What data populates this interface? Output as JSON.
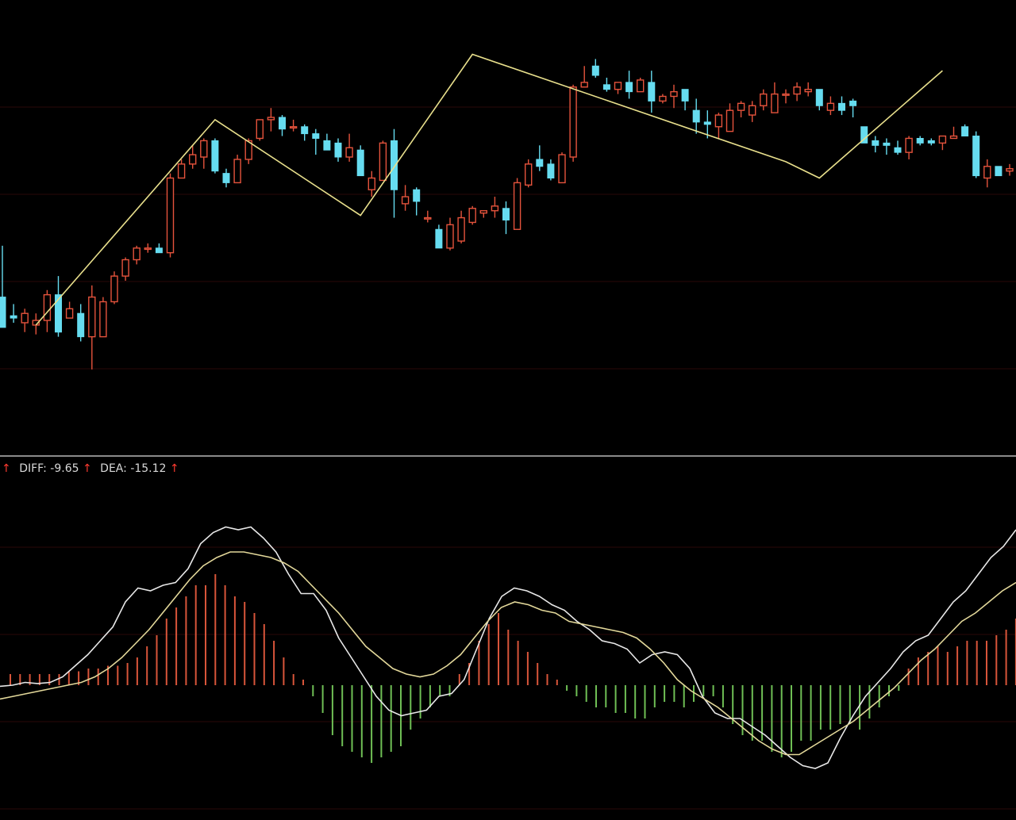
{
  "legend": {
    "diff_label": "DIFF:",
    "diff_value": "-9.65",
    "dea_label": "DEA:",
    "dea_value": "-15.12",
    "arrow": "↑"
  },
  "colors": {
    "background": "#000000",
    "up": "#e5533c",
    "down": "#66dcf0",
    "zigzag": "#e8df8c",
    "diff_line": "#e8e8e8",
    "dea_line": "#e3d89a",
    "hist_pos": "#d8553a",
    "hist_neg": "#6fbf55",
    "divider": "#8a8a8a",
    "grid": "#2a0808",
    "legend_text": "#d9d9d9",
    "arrow": "#ff3b30"
  },
  "chart_data": [
    {
      "type": "candlestick",
      "title": "",
      "series": [
        {
          "name": "",
          "ohlc": [
            [
              63,
              50,
              85,
              50
            ],
            [
              55,
              54,
              60,
              52
            ],
            [
              52,
              56,
              58,
              48
            ],
            [
              51,
              53,
              56,
              47
            ],
            [
              53,
              64,
              66,
              48
            ],
            [
              64,
              48,
              72,
              46
            ],
            [
              54,
              58,
              61,
              56
            ],
            [
              56,
              46,
              60,
              44
            ],
            [
              46,
              63,
              68,
              32
            ],
            [
              46,
              61,
              63,
              46
            ],
            [
              61,
              72,
              74,
              60
            ],
            [
              72,
              79,
              80,
              70
            ],
            [
              79,
              84,
              85,
              77
            ],
            [
              84,
              84,
              86,
              82
            ],
            [
              84,
              82,
              86,
              82
            ],
            [
              82,
              114,
              116,
              80
            ],
            [
              114,
              120,
              122,
              114
            ],
            [
              120,
              124,
              128,
              118
            ],
            [
              123,
              130,
              131,
              118
            ],
            [
              130,
              117,
              131,
              116
            ],
            [
              116,
              112,
              118,
              110
            ],
            [
              112,
              122,
              124,
              112
            ],
            [
              122,
              130,
              131,
              120
            ],
            [
              131,
              139,
              139,
              130
            ],
            [
              139,
              140,
              144,
              134
            ],
            [
              140,
              135,
              141,
              132
            ],
            [
              136,
              136,
              139,
              134
            ],
            [
              136,
              133,
              137,
              130
            ],
            [
              133,
              131,
              135,
              124
            ],
            [
              130,
              126,
              133,
              126
            ],
            [
              129,
              123,
              131,
              121
            ],
            [
              123,
              127,
              133,
              121
            ],
            [
              126,
              115,
              128,
              115
            ],
            [
              109,
              114,
              117,
              106
            ],
            [
              113,
              129,
              130,
              113
            ],
            [
              130,
              109,
              135,
              97
            ],
            [
              103,
              106,
              111,
              100
            ],
            [
              109,
              104,
              110,
              98
            ],
            [
              97,
              97,
              100,
              95
            ],
            [
              92,
              84,
              94,
              84
            ],
            [
              84,
              94,
              97,
              83
            ],
            [
              87,
              97,
              100,
              86
            ],
            [
              95,
              101,
              102,
              94
            ],
            [
              99,
              100,
              100,
              97
            ],
            [
              100,
              102,
              106,
              97
            ],
            [
              101,
              96,
              104,
              90
            ],
            [
              92,
              112,
              114,
              92
            ],
            [
              111,
              120,
              122,
              110
            ],
            [
              122,
              119,
              128,
              117
            ],
            [
              120,
              114,
              122,
              113
            ],
            [
              112,
              124,
              125,
              112
            ],
            [
              123,
              153,
              154,
              121
            ],
            [
              153,
              155,
              162,
              153
            ],
            [
              162,
              158,
              165,
              157
            ],
            [
              154,
              152,
              157,
              151
            ],
            [
              152,
              155,
              155,
              150
            ],
            [
              155,
              151,
              160,
              148
            ],
            [
              151,
              156,
              157,
              151
            ],
            [
              155,
              147,
              160,
              142
            ],
            [
              147,
              149,
              150,
              146
            ],
            [
              149,
              151,
              154,
              144
            ],
            [
              152,
              147,
              151,
              143
            ],
            [
              143,
              138,
              148,
              133
            ],
            [
              138,
              137,
              143,
              131
            ],
            [
              136,
              141,
              142,
              131
            ],
            [
              134,
              143,
              146,
              137
            ],
            [
              143,
              146,
              147,
              140
            ],
            [
              141,
              145,
              147,
              138
            ],
            [
              145,
              150,
              152,
              143
            ],
            [
              142,
              150,
              155,
              142
            ],
            [
              150,
              150,
              152,
              146
            ],
            [
              150,
              153,
              155,
              147
            ],
            [
              151,
              152,
              155,
              149
            ],
            [
              152,
              145,
              152,
              143
            ],
            [
              143,
              146,
              149,
              141
            ],
            [
              146,
              143,
              149,
              141
            ],
            [
              147,
              145,
              148,
              140
            ],
            [
              136,
              129,
              136,
              130
            ],
            [
              130,
              128,
              132,
              125
            ],
            [
              129,
              128,
              131,
              124
            ],
            [
              127,
              125,
              130,
              124
            ],
            [
              125,
              131,
              132,
              122
            ],
            [
              131,
              129,
              132,
              128
            ],
            [
              130,
              129,
              131,
              128
            ],
            [
              129,
              132,
              132,
              126
            ],
            [
              131,
              132,
              136,
              132
            ],
            [
              136,
              132,
              137,
              132
            ],
            [
              132,
              115,
              134,
              114
            ],
            [
              114,
              119,
              122,
              110
            ],
            [
              119,
              115,
              117,
              115
            ],
            [
              117,
              118,
              120,
              115
            ],
            [
              117,
              121,
              122,
              116
            ],
            [
              123,
              134,
              135,
              122
            ],
            [
              134,
              141,
              142,
              133
            ],
            [
              141,
              140,
              143,
              140
            ],
            [
              140,
              140,
              143,
              138
            ],
            [
              140,
              143,
              143,
              141
            ],
            [
              143,
              140,
              145,
              139
            ],
            [
              142,
              131,
              142,
              128
            ],
            [
              132,
              149,
              151,
              131
            ],
            [
              149,
              153,
              156,
              148
            ],
            [
              153,
              150,
              154,
              148
            ],
            [
              151,
              154,
              157,
              148
            ],
            [
              152,
              160,
              164,
              150
            ],
            [
              161,
              171,
              174,
              159
            ],
            [
              171,
              172,
              175,
              169
            ]
          ]
        },
        {
          "name": "",
          "type": "line",
          "values": [
            [
              3,
              51
            ],
            [
              19,
              139
            ],
            [
              32,
              98
            ],
            [
              42,
              167
            ],
            [
              70,
              121
            ],
            [
              73,
              114
            ],
            [
              84,
              160
            ]
          ]
        }
      ]
    },
    {
      "type": "bar+line",
      "title": "",
      "series": [
        {
          "name": "DIFF",
          "type": "line",
          "values": [
            -0.2,
            0,
            0.5,
            0.3,
            0.5,
            1.5,
            3.5,
            5.5,
            8,
            10.5,
            15,
            17.5,
            17,
            18,
            18.5,
            21,
            25.5,
            27.5,
            28.5,
            28,
            28.5,
            26.5,
            24,
            20,
            16.5,
            16.5,
            13.5,
            8.5,
            5,
            1.5,
            -2,
            -4.5,
            -5.5,
            -5,
            -4.5,
            -2,
            -1.5,
            1,
            6.5,
            12,
            16,
            17.5,
            17,
            16,
            14.5,
            13.5,
            11.5,
            10,
            8,
            7.5,
            6.5,
            4,
            5.5,
            6,
            5.5,
            3,
            -2,
            -5,
            -6,
            -6,
            -7.5,
            -9,
            -11,
            -13,
            -14.5,
            -15,
            -14,
            -9.5,
            -5.5,
            -2,
            0.5,
            3,
            6,
            8,
            9,
            12,
            15,
            17,
            20,
            23,
            25,
            28
          ]
        },
        {
          "name": "DEA",
          "type": "line",
          "values": [
            -2.5,
            -2,
            -1.5,
            -1,
            -0.5,
            0,
            0.5,
            1.5,
            3,
            5,
            7.5,
            10,
            13,
            16,
            19,
            21.5,
            23,
            24,
            24,
            23.5,
            23,
            22,
            20.5,
            18,
            15.5,
            13,
            10,
            7,
            5,
            3,
            2,
            1.5,
            2,
            3.5,
            5.5,
            8.5,
            11.5,
            14,
            15,
            14.5,
            13.5,
            13,
            11.5,
            11,
            10.5,
            10,
            9.5,
            8.5,
            6.5,
            4,
            1,
            -1,
            -2.5,
            -4,
            -6,
            -8,
            -10,
            -11.5,
            -12.5,
            -12.5,
            -11,
            -9.5,
            -8,
            -6.5,
            -4.5,
            -2.5,
            -0.5,
            2,
            4.5,
            6.5,
            9,
            11.5,
            13,
            15,
            17,
            18.5
          ]
        },
        {
          "name": "MACD",
          "type": "bar",
          "values": [
            2,
            2,
            2,
            2,
            2,
            2,
            2.5,
            2.5,
            3,
            3,
            3.5,
            3.5,
            4,
            5,
            7,
            9,
            12,
            14,
            16,
            18,
            18,
            20,
            18,
            16,
            15,
            13,
            11,
            8,
            5,
            2,
            1,
            -2,
            -5,
            -9,
            -11,
            -12,
            -13,
            -14,
            -13,
            -12,
            -11,
            -8,
            -6,
            -4,
            -2,
            -2,
            2,
            4,
            8,
            11,
            13,
            10,
            8,
            6,
            4,
            2,
            1,
            -1,
            -2,
            -3,
            -4,
            -4,
            -5,
            -5,
            -6,
            -6,
            -4,
            -3,
            -3,
            -4,
            -3,
            -2,
            -2,
            -4,
            -7,
            -9,
            -10,
            -10,
            -12,
            -13,
            -12,
            -10,
            -10,
            -8,
            -8,
            -7,
            -7,
            -8,
            -6,
            -4,
            -2,
            -1,
            3,
            5,
            6,
            7,
            6,
            7,
            8,
            8,
            8,
            9,
            10,
            12
          ]
        }
      ]
    }
  ]
}
